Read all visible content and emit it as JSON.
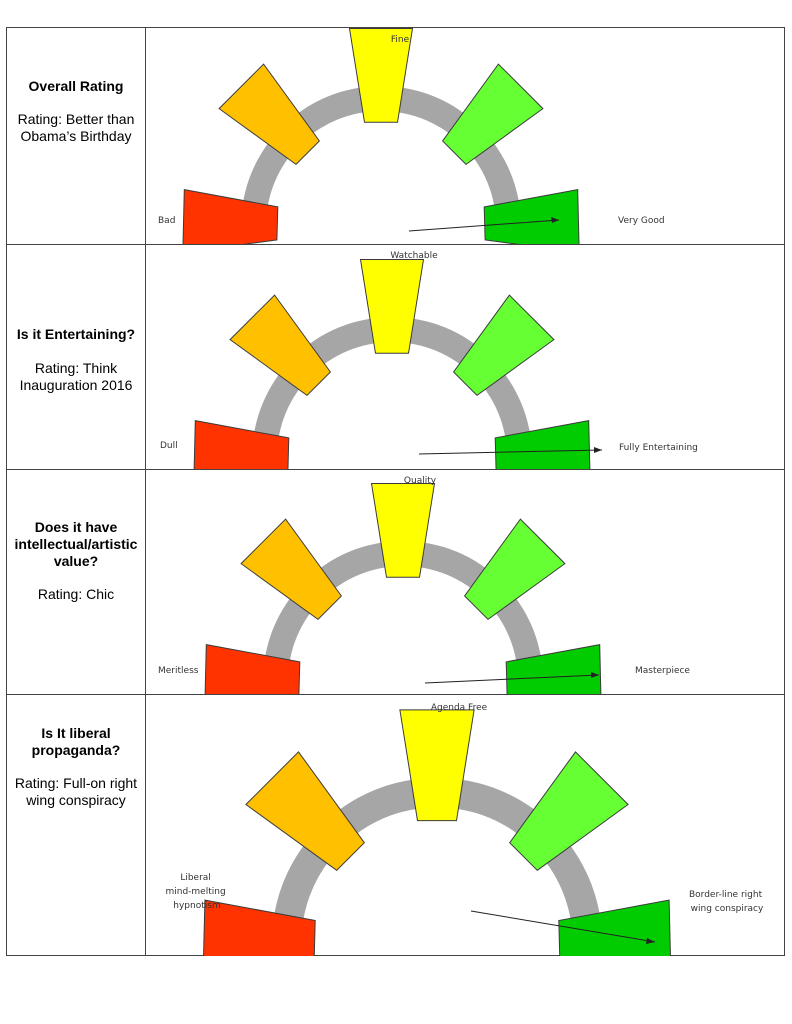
{
  "rows": [
    {
      "question": "Overall Rating",
      "rating": "Rating: Better than Obama’s Birthday",
      "gauge": {
        "top": "Fine",
        "left": "Bad",
        "right": "Very Good"
      }
    },
    {
      "question": "Is it Entertaining?",
      "rating": "Rating: Think Inauguration 2016",
      "gauge": {
        "top": "Watchable",
        "left": "Dull",
        "right": "Fully Entertaining"
      }
    },
    {
      "question": "Does it have intellectual/artistic value?",
      "rating": "Rating: Chic",
      "gauge": {
        "top": "Quality",
        "left": "Meritless",
        "right": "Masterpiece"
      }
    },
    {
      "question": "Is It liberal propaganda?",
      "rating": "Rating: Full-on right wing conspiracy",
      "gauge": {
        "top": "Agenda Free",
        "left": [
          "Liberal",
          "mind-melting",
          "hypnotism"
        ],
        "right": [
          "Border-line right",
          "wing conspiracy"
        ]
      }
    }
  ],
  "gauge_colors": [
    "#ff3300",
    "#ffc000",
    "#ffff00",
    "#66ff33",
    "#00cc00"
  ],
  "gauge_backdrop": "#a6a6a6"
}
